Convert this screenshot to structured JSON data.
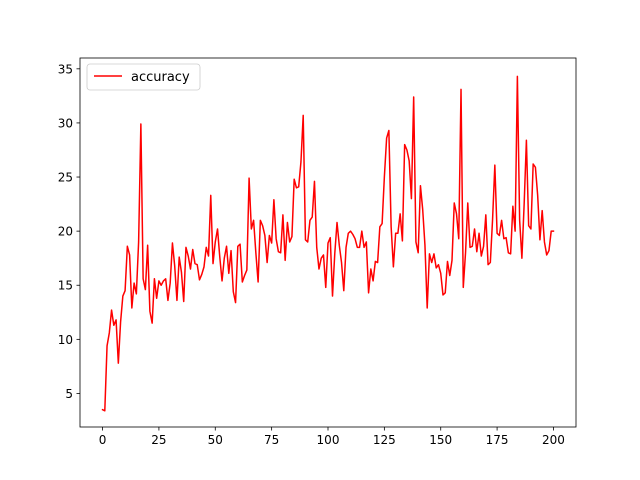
{
  "chart_data": {
    "type": "line",
    "title": "",
    "xlabel": "",
    "ylabel": "",
    "xlim": [
      -10,
      210
    ],
    "ylim": [
      1.9,
      36.0
    ],
    "xticks": [
      0,
      25,
      50,
      75,
      100,
      125,
      150,
      175,
      200
    ],
    "yticks": [
      5,
      10,
      15,
      20,
      25,
      30,
      35
    ],
    "legend": {
      "position": "top-left",
      "entries": [
        "accuracy"
      ]
    },
    "grid": false,
    "series": [
      {
        "name": "accuracy",
        "color": "#ff0000",
        "x": [
          0,
          1,
          2,
          3,
          4,
          5,
          6,
          7,
          8,
          9,
          10,
          11,
          12,
          13,
          14,
          15,
          16,
          17,
          18,
          19,
          20,
          21,
          22,
          23,
          24,
          25,
          26,
          27,
          28,
          29,
          30,
          31,
          32,
          33,
          34,
          35,
          36,
          37,
          38,
          39,
          40,
          41,
          42,
          43,
          44,
          45,
          46,
          47,
          48,
          49,
          50,
          51,
          52,
          53,
          54,
          55,
          56,
          57,
          58,
          59,
          60,
          61,
          62,
          63,
          64,
          65,
          66,
          67,
          68,
          69,
          70,
          71,
          72,
          73,
          74,
          75,
          76,
          77,
          78,
          79,
          80,
          81,
          82,
          83,
          84,
          85,
          86,
          87,
          88,
          89,
          90,
          91,
          92,
          93,
          94,
          95,
          96,
          97,
          98,
          99,
          100,
          101,
          102,
          103,
          104,
          105,
          106,
          107,
          108,
          109,
          110,
          111,
          112,
          113,
          114,
          115,
          116,
          117,
          118,
          119,
          120,
          121,
          122,
          123,
          124,
          125,
          126,
          127,
          128,
          129,
          130,
          131,
          132,
          133,
          134,
          135,
          136,
          137,
          138,
          139,
          140,
          141,
          142,
          143,
          144,
          145,
          146,
          147,
          148,
          149,
          150,
          151,
          152,
          153,
          154,
          155,
          156,
          157,
          158,
          159,
          160,
          161,
          162,
          163,
          164,
          165,
          166,
          167,
          168,
          169,
          170,
          171,
          172,
          173,
          174,
          175,
          176,
          177,
          178,
          179,
          180,
          181,
          182,
          183,
          184,
          185,
          186,
          187,
          188,
          189,
          190,
          191,
          192,
          193,
          194,
          195,
          196,
          197,
          198,
          199,
          200
        ],
        "y": [
          3.5,
          3.4,
          9.4,
          10.6,
          12.7,
          11.3,
          11.8,
          7.8,
          11.6,
          14.0,
          14.5,
          18.6,
          17.8,
          12.9,
          15.2,
          14.2,
          19.0,
          29.9,
          15.6,
          14.6,
          18.7,
          12.6,
          11.5,
          15.6,
          13.8,
          15.4,
          15.0,
          15.4,
          15.6,
          13.6,
          15.2,
          18.9,
          16.8,
          13.6,
          17.6,
          16.2,
          13.5,
          18.5,
          17.7,
          16.5,
          18.3,
          17.0,
          16.9,
          15.5,
          16.0,
          16.7,
          18.5,
          17.7,
          23.3,
          17.0,
          19.0,
          20.2,
          17.6,
          15.4,
          17.5,
          18.6,
          16.1,
          18.2,
          14.4,
          13.4,
          18.6,
          18.8,
          15.3,
          15.9,
          16.4,
          24.9,
          20.2,
          21.0,
          18.0,
          15.3,
          21.0,
          20.5,
          19.6,
          17.1,
          19.6,
          18.9,
          22.9,
          19.3,
          18.1,
          18.0,
          21.5,
          17.3,
          20.8,
          19.0,
          19.5,
          24.8,
          24.0,
          24.1,
          26.4,
          30.7,
          19.2,
          19.0,
          21.0,
          21.3,
          24.6,
          18.5,
          16.5,
          17.5,
          17.8,
          14.8,
          18.9,
          19.4,
          14.0,
          17.9,
          20.8,
          18.7,
          17.1,
          14.5,
          18.5,
          19.8,
          20.0,
          19.7,
          19.3,
          18.5,
          18.5,
          20.0,
          18.5,
          19.0,
          14.3,
          16.5,
          15.4,
          17.2,
          17.1,
          20.4,
          20.7,
          25.0,
          28.6,
          29.3,
          20.4,
          16.7,
          19.8,
          19.8,
          21.6,
          19.1,
          28.0,
          27.5,
          26.5,
          23.0,
          32.4,
          19.0,
          18.0,
          24.2,
          22.0,
          18.7,
          12.9,
          17.9,
          17.1,
          17.9,
          16.6,
          16.9,
          16.1,
          14.1,
          14.3,
          17.2,
          15.9,
          17.3,
          22.6,
          21.6,
          19.3,
          33.1,
          14.8,
          18.0,
          22.6,
          18.5,
          18.6,
          20.2,
          18.1,
          19.8,
          17.7,
          18.6,
          21.5,
          16.9,
          17.1,
          21.1,
          26.1,
          19.8,
          19.6,
          21.0,
          19.3,
          19.4,
          18.0,
          17.9,
          22.3,
          20.0,
          34.3,
          21.0,
          17.5,
          22.5,
          28.4,
          20.5,
          20.2,
          26.2,
          25.9,
          23.3,
          19.2,
          21.9,
          19.0,
          17.8,
          18.2,
          20.0,
          20.0
        ]
      }
    ]
  }
}
